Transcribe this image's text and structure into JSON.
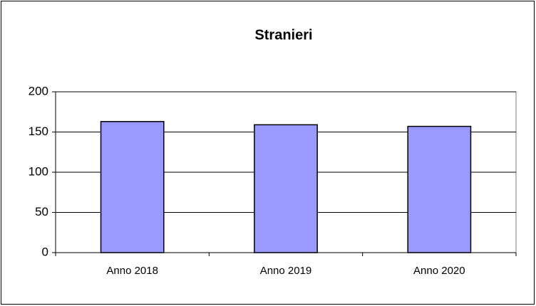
{
  "chart_data": {
    "type": "bar",
    "title": "Stranieri",
    "categories": [
      "Anno 2018",
      "Anno 2019",
      "Anno 2020"
    ],
    "values": [
      163,
      159,
      157
    ],
    "color": "#9999ff",
    "ylim": [
      0,
      200
    ],
    "yticks": [
      0,
      50,
      100,
      150,
      200
    ],
    "grid": true
  }
}
